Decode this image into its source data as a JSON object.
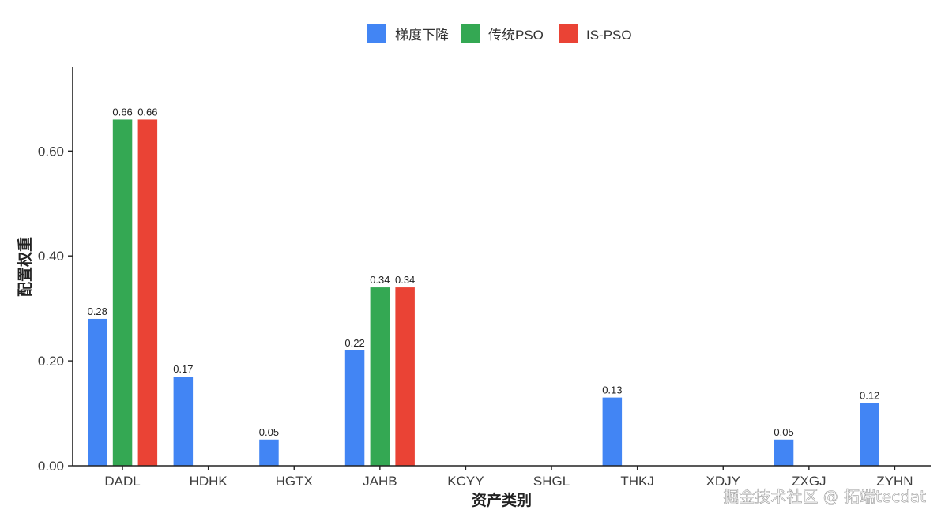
{
  "chart_data": {
    "type": "bar",
    "xlabel": "资产类别",
    "ylabel": "配置权重",
    "ylim": [
      0,
      0.76
    ],
    "yticks": [
      0,
      0.2,
      0.4,
      0.6
    ],
    "ytick_labels": [
      "0.00",
      "0.20",
      "0.40",
      "0.60"
    ],
    "grid": false,
    "legend_position": "top",
    "categories": [
      "DADL",
      "HDHK",
      "HGTX",
      "JAHB",
      "KCYY",
      "SHGL",
      "THKJ",
      "XDJY",
      "ZXGJ",
      "ZYHN"
    ],
    "series": [
      {
        "name": "梯度下降",
        "color": "#4285f4",
        "values": [
          0.28,
          0.17,
          0.05,
          0.22,
          0,
          0,
          0.13,
          0,
          0.05,
          0.12
        ],
        "labels": [
          "0.28",
          "0.17",
          "0.05",
          "0.22",
          "",
          "",
          "0.13",
          "",
          "0.05",
          "0.12"
        ]
      },
      {
        "name": "传统PSO",
        "color": "#34a853",
        "values": [
          0.66,
          0,
          0,
          0.34,
          0,
          0,
          0,
          0,
          0,
          0
        ],
        "labels": [
          "0.66",
          "",
          "",
          "0.34",
          "",
          "",
          "",
          "",
          "",
          ""
        ]
      },
      {
        "name": "IS-PSO",
        "color": "#ea4335",
        "values": [
          0.66,
          0,
          0,
          0.34,
          0,
          0,
          0,
          0,
          0,
          0
        ],
        "labels": [
          "0.66",
          "",
          "",
          "0.34",
          "",
          "",
          "",
          "",
          "",
          ""
        ]
      }
    ]
  },
  "watermark": "掘金技术社区 @ 拓端tecdat"
}
